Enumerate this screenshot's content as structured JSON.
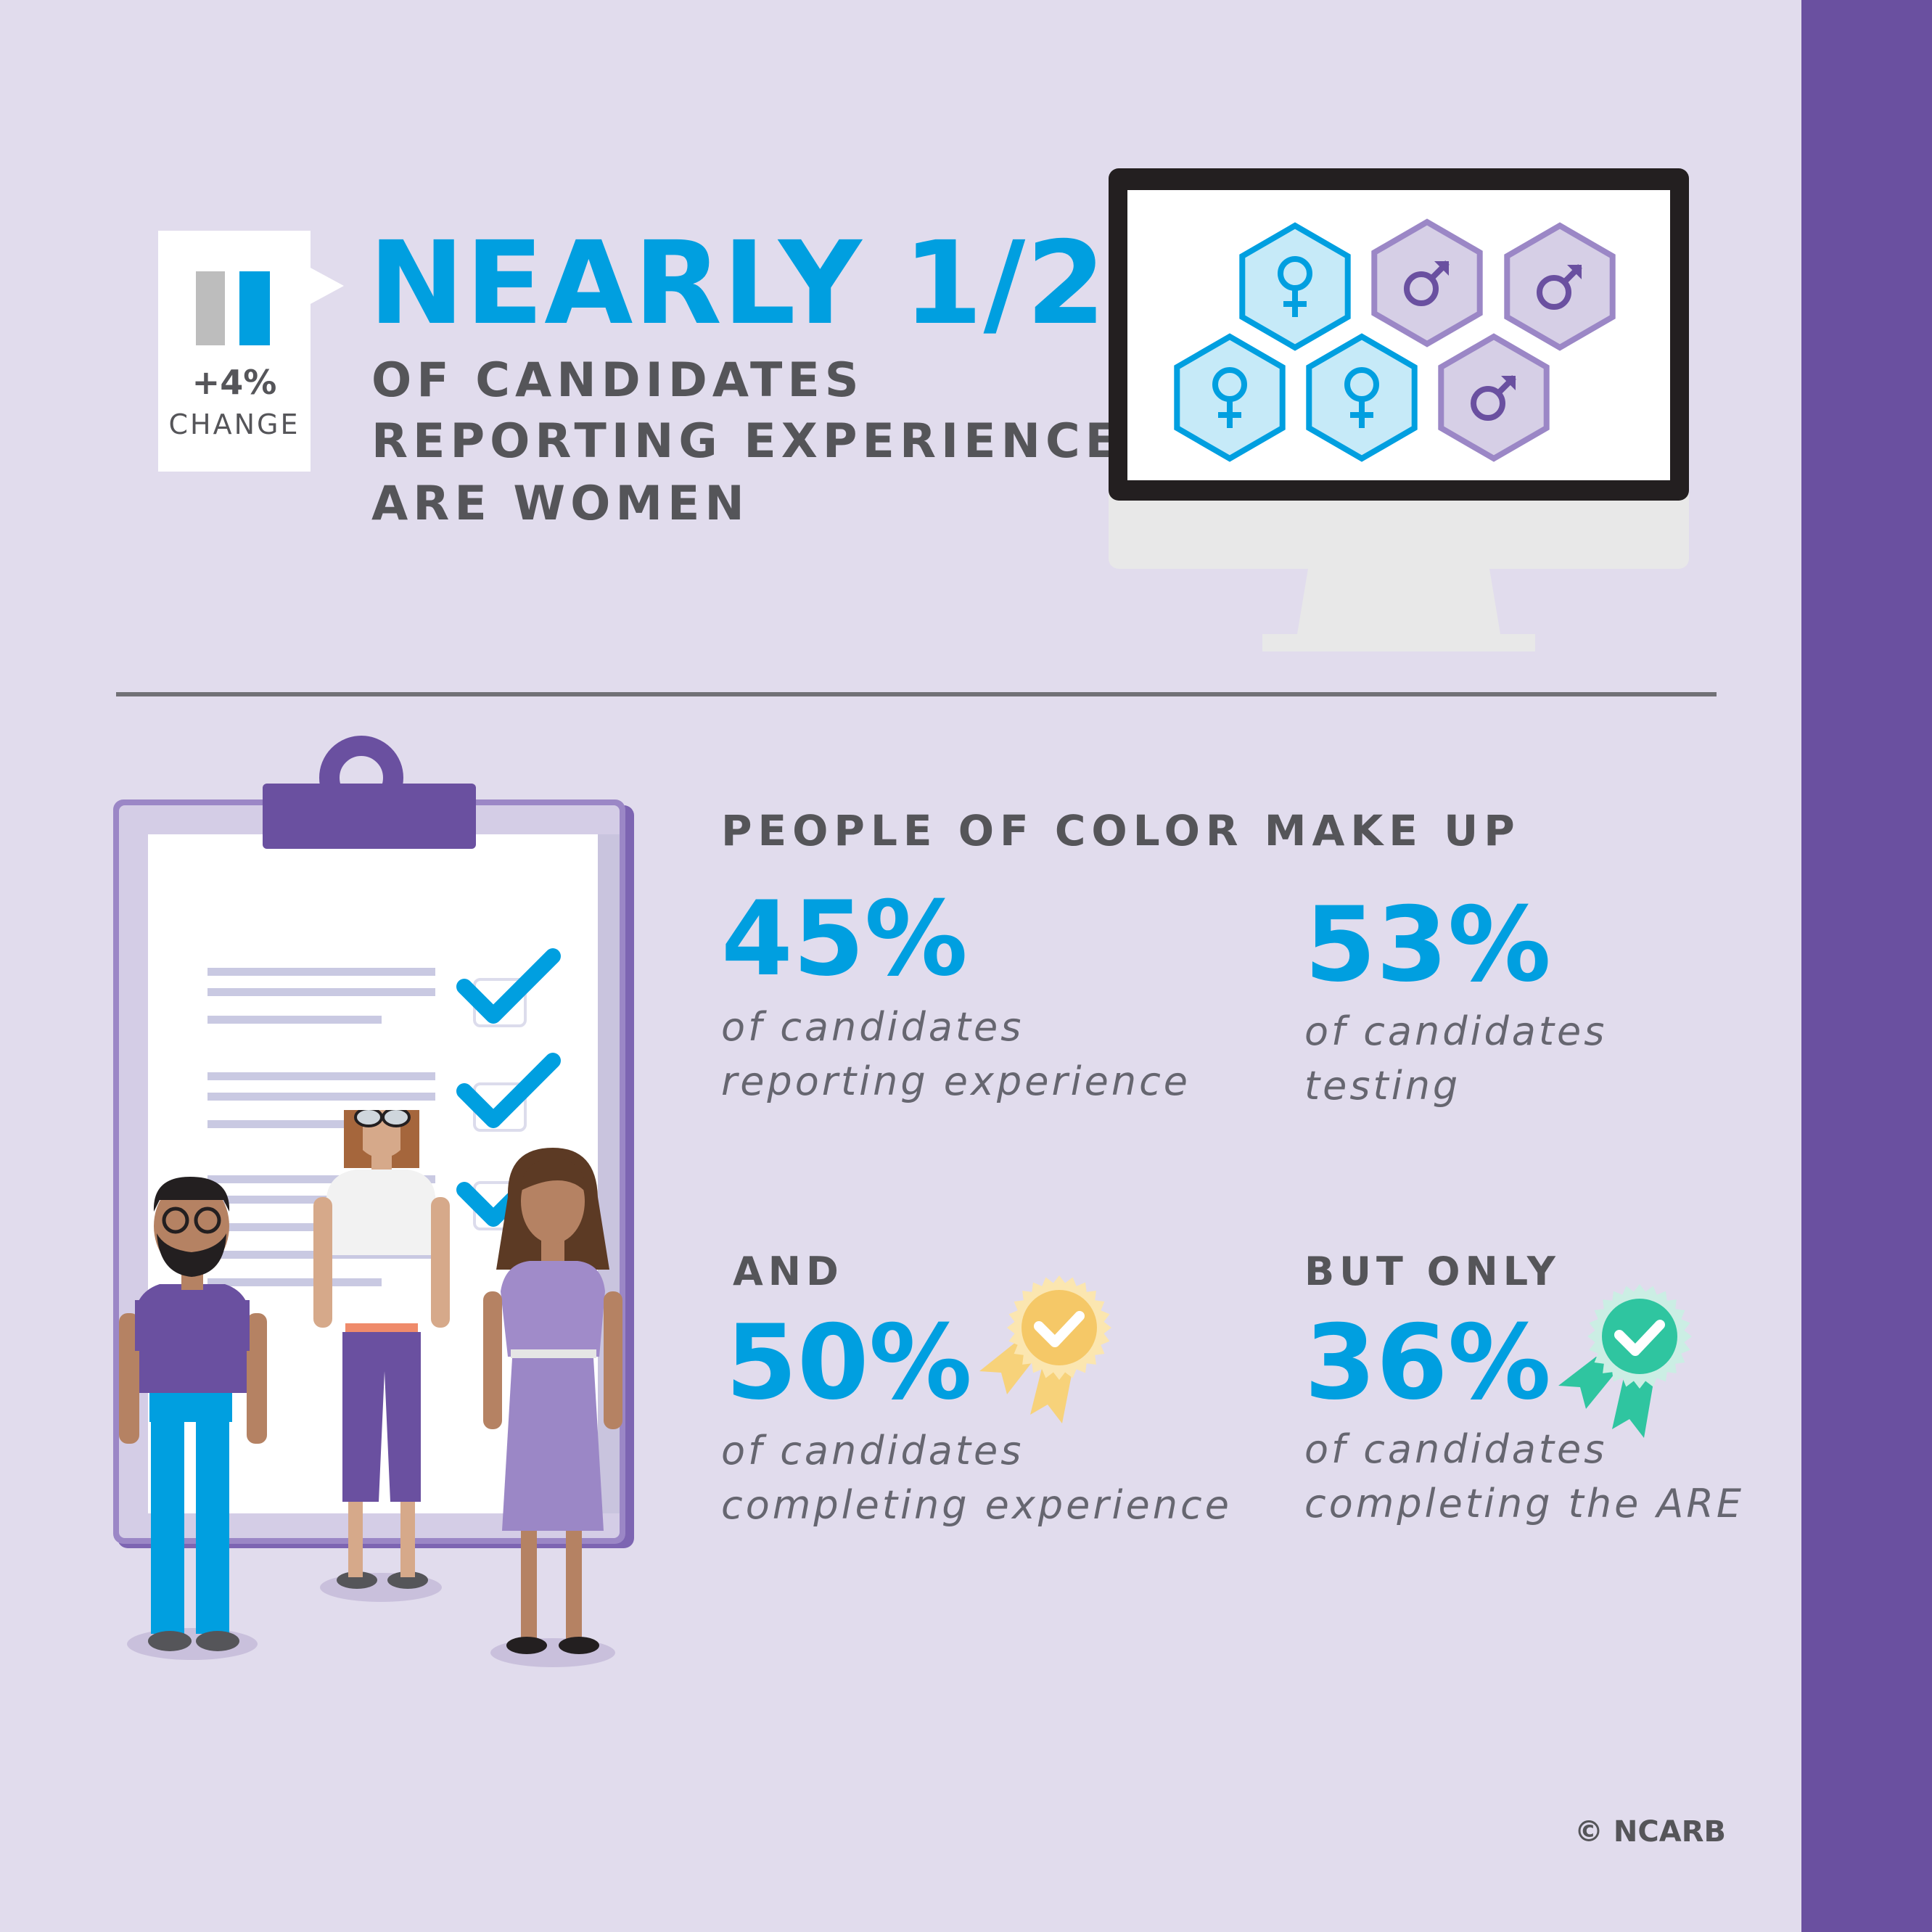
{
  "colors": {
    "background": "#e1dced",
    "accent_blue": "#009fe0",
    "purple": "#6a50a0",
    "text_gray": "#555559"
  },
  "badge": {
    "value": "+4%",
    "label": "CHANGE",
    "icon": "bar-chart-icon"
  },
  "headline": {
    "title": "NEARLY 1/2",
    "line1": "OF CANDIDATES",
    "line2": "REPORTING EXPERIENCE",
    "line3": "ARE WOMEN"
  },
  "monitor": {
    "icons": [
      "female-symbol-icon",
      "male-symbol-icon",
      "male-symbol-icon",
      "female-symbol-icon",
      "female-symbol-icon",
      "male-symbol-icon"
    ],
    "female_count": 3,
    "male_count": 3
  },
  "poc": {
    "heading": "PEOPLE OF COLOR MAKE UP",
    "stats": [
      {
        "value": "45%",
        "line1": "of candidates",
        "line2": "reporting experience"
      },
      {
        "value": "53%",
        "line1": "of candidates",
        "line2": "testing"
      },
      {
        "prefix": "AND",
        "value": "50%",
        "line1": "of candidates",
        "line2": "completing experience",
        "icon": "gold-award-ribbon-icon"
      },
      {
        "prefix": "BUT ONLY",
        "value": "36%",
        "line1": "of candidates",
        "line2": "completing the ARE",
        "icon": "teal-award-ribbon-icon"
      }
    ]
  },
  "illustration": {
    "icons": [
      "clipboard-icon",
      "checkmark-icon",
      "people-illustration"
    ]
  },
  "footer": {
    "copyright": "© NCARB"
  }
}
